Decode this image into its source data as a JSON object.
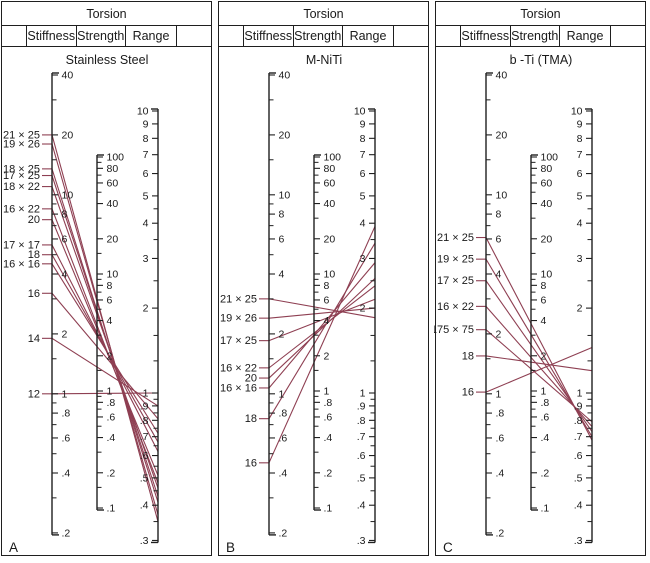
{
  "header": {
    "title": "Torsion",
    "columns": [
      "Stiffness",
      "Strength",
      "Range"
    ]
  },
  "colors": {
    "wire_line": "#8e3f52",
    "axis": "#1f1f1f",
    "text": "#1a1a1a",
    "background": "#ffffff"
  },
  "chart_data": {
    "type": "line",
    "subtype": "nomogram",
    "property": "Torsion",
    "axis_columns": [
      "Stiffness",
      "Strength",
      "Range"
    ],
    "scales": {
      "stiffness": {
        "name": "Stiffness",
        "top_value": 40,
        "bottom_value": 0.2,
        "labeled_ticks": [
          {
            "v": 40,
            "t": "40"
          },
          {
            "v": 20,
            "t": "20"
          },
          {
            "v": 10,
            "t": "10"
          },
          {
            "v": 8,
            "t": "8"
          },
          {
            "v": 6,
            "t": "6"
          },
          {
            "v": 4,
            "t": "4"
          },
          {
            "v": 2,
            "t": "2"
          },
          {
            "v": 1,
            "t": "1"
          },
          {
            "v": 0.8,
            "t": ".8"
          },
          {
            "v": 0.6,
            "t": ".6"
          },
          {
            "v": 0.4,
            "t": ".4"
          },
          {
            "v": 0.2,
            "t": ".2"
          }
        ],
        "minor_ticks": [
          30,
          15,
          9,
          7,
          5,
          3,
          1.5,
          0.9,
          0.7,
          0.5,
          0.3
        ]
      },
      "strength": {
        "name": "Strength",
        "top_value": 100,
        "bottom_value": 0.1,
        "labeled_ticks": [
          {
            "v": 100,
            "t": "100"
          },
          {
            "v": 80,
            "t": "80"
          },
          {
            "v": 60,
            "t": "60"
          },
          {
            "v": 40,
            "t": "40"
          },
          {
            "v": 20,
            "t": "20"
          },
          {
            "v": 10,
            "t": "10"
          },
          {
            "v": 8,
            "t": "8"
          },
          {
            "v": 6,
            "t": "6"
          },
          {
            "v": 4,
            "t": "4"
          },
          {
            "v": 2,
            "t": "2"
          },
          {
            "v": 1,
            "t": "1"
          },
          {
            "v": 0.8,
            "t": ".8"
          },
          {
            "v": 0.6,
            "t": ".6"
          },
          {
            "v": 0.4,
            "t": ".4"
          },
          {
            "v": 0.2,
            "t": ".2"
          },
          {
            "v": 0.1,
            "t": ".1"
          }
        ],
        "minor_ticks": [
          90,
          70,
          50,
          30,
          15,
          9,
          7,
          5,
          3,
          1.5,
          0.9,
          0.7,
          0.5,
          0.3,
          0.15
        ]
      },
      "range": {
        "name": "Range",
        "top_value": 10,
        "bottom_value": 0.3,
        "labeled_ticks": [
          {
            "v": 10,
            "t": "10"
          },
          {
            "v": 9,
            "t": "9"
          },
          {
            "v": 8,
            "t": "8"
          },
          {
            "v": 7,
            "t": "7"
          },
          {
            "v": 6,
            "t": "6"
          },
          {
            "v": 5,
            "t": "5"
          },
          {
            "v": 4,
            "t": "4"
          },
          {
            "v": 3,
            "t": "3"
          },
          {
            "v": 2,
            "t": "2"
          },
          {
            "v": 1,
            "t": "1"
          },
          {
            "v": 0.9,
            "t": ".9"
          },
          {
            "v": 0.8,
            "t": ".8"
          },
          {
            "v": 0.7,
            "t": ".7"
          },
          {
            "v": 0.6,
            "t": ".6"
          },
          {
            "v": 0.5,
            "t": ".5"
          },
          {
            "v": 0.4,
            "t": ".4"
          },
          {
            "v": 0.3,
            "t": ".3"
          }
        ],
        "minor_ticks": [
          4.5,
          3.5,
          2.5,
          1.6,
          1.3,
          0.95,
          0.85,
          0.75,
          0.65,
          0.55,
          0.45,
          0.35
        ]
      }
    },
    "panels": [
      {
        "letter": "A",
        "title": "Stainless Steel",
        "wires": [
          {
            "label": "21 × 25",
            "stiffness": 20,
            "range": 0.35
          },
          {
            "label": "19 × 26",
            "stiffness": 18,
            "range": 0.37
          },
          {
            "label": "18 × 25",
            "stiffness": 13.5,
            "range": 0.41
          },
          {
            "label": "17 × 25",
            "stiffness": 12.5,
            "range": 0.43
          },
          {
            "label": "18 × 22",
            "stiffness": 11,
            "range": 0.46
          },
          {
            "label": "16 × 22",
            "stiffness": 8.5,
            "range": 0.48
          },
          {
            "label": "20",
            "stiffness": 7.5,
            "range": 0.51
          },
          {
            "label": "17 × 17",
            "stiffness": 5.6,
            "range": 0.62
          },
          {
            "label": "18",
            "stiffness": 5.0,
            "range": 0.67
          },
          {
            "label": "16 × 16",
            "stiffness": 4.5,
            "range": 0.72
          },
          {
            "label": "16",
            "stiffness": 3.2,
            "range": 0.81
          },
          {
            "label": "14",
            "stiffness": 1.9,
            "range": 0.9
          },
          {
            "label": "12",
            "stiffness": 1.0,
            "range": 1.0
          }
        ]
      },
      {
        "letter": "B",
        "title": "M-NiTi",
        "wires": [
          {
            "label": "21 × 25",
            "stiffness": 3.0,
            "range": 1.85
          },
          {
            "label": "19 × 26",
            "stiffness": 2.4,
            "range": 2.0
          },
          {
            "label": "17 × 25",
            "stiffness": 1.85,
            "range": 2.15
          },
          {
            "label": "16 × 22",
            "stiffness": 1.35,
            "range": 2.4
          },
          {
            "label": "20",
            "stiffness": 1.2,
            "range": 2.55
          },
          {
            "label": "16 × 16",
            "stiffness": 1.07,
            "range": 2.9
          },
          {
            "label": "18",
            "stiffness": 0.75,
            "range": 3.4
          },
          {
            "label": "16",
            "stiffness": 0.45,
            "range": 3.9
          }
        ]
      },
      {
        "letter": "C",
        "title": "b -Ti (TMA)",
        "wires": [
          {
            "label": "21 × 25",
            "stiffness": 6.1,
            "range": 0.68
          },
          {
            "label": "19 × 25",
            "stiffness": 4.75,
            "range": 0.7
          },
          {
            "label": "17 × 25",
            "stiffness": 3.7,
            "range": 0.73
          },
          {
            "label": "16 × 22",
            "stiffness": 2.75,
            "range": 0.76
          },
          {
            "label": "175 × 75",
            "stiffness": 2.1,
            "range": 0.79
          },
          {
            "label": "18",
            "stiffness": 1.55,
            "range": 1.2
          },
          {
            "label": "16",
            "stiffness": 1.02,
            "range": 1.45
          }
        ]
      }
    ]
  }
}
